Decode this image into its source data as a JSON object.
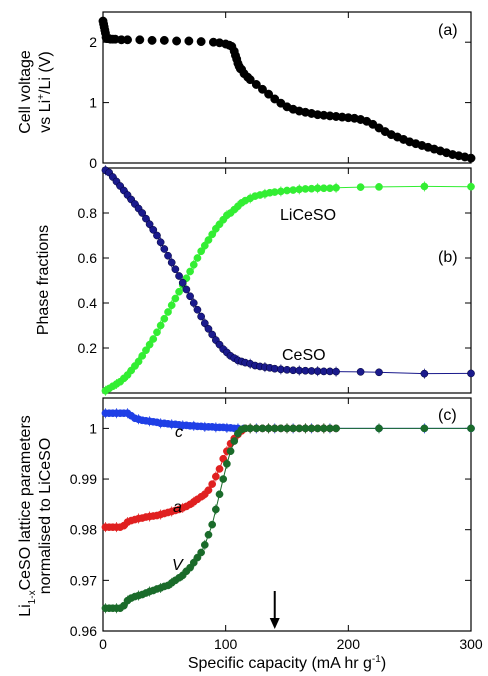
{
  "chart_data": [
    {
      "type": "scatter",
      "panel_label": "(a)",
      "ylabel_line1": "Cell voltage",
      "ylabel_line2_prefix": "vs Li",
      "ylabel_line2_sup": "+",
      "ylabel_line2_suffix": "/Li (V)",
      "xlim": [
        0,
        300
      ],
      "ylim": [
        0,
        2.5
      ],
      "yticks": [
        0,
        1,
        2
      ],
      "ytick_labels": [
        "0",
        "1",
        "2"
      ],
      "marker_color": "#000000",
      "series": [
        {
          "x": [
            0,
            0.5,
            1,
            1.5,
            2,
            2.5,
            3,
            4,
            5,
            6,
            8,
            10,
            15,
            20,
            30,
            40,
            50,
            60,
            70,
            80,
            90,
            95,
            100,
            103,
            105,
            107,
            108,
            109,
            110,
            111,
            112,
            113,
            115,
            118,
            120,
            125,
            130,
            135,
            140,
            145,
            150,
            155,
            160,
            165,
            170,
            175,
            180,
            185,
            190,
            195,
            200,
            205,
            210,
            215,
            220,
            225,
            230,
            235,
            240,
            245,
            250,
            255,
            260,
            265,
            270,
            275,
            280,
            285,
            290,
            295,
            300
          ],
          "y": [
            2.35,
            2.3,
            2.25,
            2.2,
            2.15,
            2.08,
            2.06,
            2.06,
            2.06,
            2.05,
            2.05,
            2.05,
            2.04,
            2.04,
            2.04,
            2.03,
            2.03,
            2.02,
            2.02,
            2.01,
            2.0,
            1.99,
            1.97,
            1.95,
            1.93,
            1.85,
            1.78,
            1.72,
            1.65,
            1.6,
            1.56,
            1.55,
            1.48,
            1.42,
            1.38,
            1.3,
            1.22,
            1.14,
            1.06,
            0.99,
            0.93,
            0.89,
            0.86,
            0.84,
            0.82,
            0.8,
            0.79,
            0.78,
            0.77,
            0.76,
            0.75,
            0.74,
            0.72,
            0.69,
            0.64,
            0.58,
            0.52,
            0.47,
            0.43,
            0.39,
            0.35,
            0.32,
            0.29,
            0.26,
            0.23,
            0.2,
            0.17,
            0.14,
            0.12,
            0.1,
            0.08
          ]
        }
      ]
    },
    {
      "type": "scatter",
      "panel_label": "(b)",
      "ylabel": "Phase fractions",
      "xlim": [
        0,
        300
      ],
      "ylim": [
        0,
        1
      ],
      "yticks": [
        0.2,
        0.4,
        0.6,
        0.8
      ],
      "ytick_labels": [
        "0.2",
        "0.4",
        "0.6",
        "0.8"
      ],
      "series": [
        {
          "name": "LiCeSO",
          "color": "#33ee33",
          "x": [
            2,
            5,
            8,
            11,
            14,
            17,
            20,
            23,
            26,
            29,
            32,
            35,
            38,
            41,
            44,
            47,
            50,
            53,
            56,
            59,
            62,
            65,
            68,
            71,
            74,
            77,
            80,
            83,
            86,
            89,
            92,
            95,
            98,
            101,
            104,
            107,
            110,
            113,
            116,
            120,
            124,
            128,
            132,
            136,
            140,
            145,
            150,
            155,
            160,
            165,
            170,
            175,
            180,
            185,
            190,
            210,
            225,
            262,
            300
          ],
          "y": [
            0.01,
            0.02,
            0.03,
            0.04,
            0.05,
            0.065,
            0.08,
            0.1,
            0.12,
            0.14,
            0.165,
            0.19,
            0.215,
            0.24,
            0.27,
            0.3,
            0.33,
            0.36,
            0.39,
            0.42,
            0.45,
            0.48,
            0.51,
            0.54,
            0.57,
            0.6,
            0.63,
            0.655,
            0.68,
            0.705,
            0.73,
            0.75,
            0.77,
            0.79,
            0.8,
            0.815,
            0.83,
            0.845,
            0.855,
            0.865,
            0.875,
            0.88,
            0.885,
            0.89,
            0.893,
            0.896,
            0.9,
            0.902,
            0.905,
            0.907,
            0.908,
            0.91,
            0.91,
            0.91,
            0.912,
            0.915,
            0.916,
            0.918,
            0.917
          ]
        },
        {
          "name": "CeSO",
          "color": "#1a1a8c",
          "x": [
            2,
            5,
            8,
            11,
            14,
            17,
            20,
            23,
            26,
            29,
            32,
            35,
            38,
            41,
            44,
            47,
            50,
            53,
            56,
            59,
            62,
            65,
            68,
            71,
            74,
            77,
            80,
            83,
            86,
            89,
            92,
            95,
            98,
            101,
            104,
            107,
            110,
            113,
            116,
            120,
            124,
            128,
            132,
            136,
            140,
            145,
            150,
            155,
            160,
            165,
            170,
            175,
            180,
            185,
            190,
            210,
            225,
            262,
            300
          ],
          "y": [
            0.99,
            0.98,
            0.96,
            0.94,
            0.92,
            0.9,
            0.88,
            0.86,
            0.84,
            0.82,
            0.8,
            0.775,
            0.75,
            0.725,
            0.7,
            0.67,
            0.64,
            0.61,
            0.58,
            0.55,
            0.52,
            0.49,
            0.46,
            0.43,
            0.4,
            0.37,
            0.34,
            0.31,
            0.285,
            0.26,
            0.235,
            0.215,
            0.195,
            0.18,
            0.165,
            0.155,
            0.145,
            0.14,
            0.135,
            0.13,
            0.122,
            0.118,
            0.115,
            0.112,
            0.108,
            0.105,
            0.103,
            0.101,
            0.1,
            0.099,
            0.098,
            0.097,
            0.096,
            0.096,
            0.095,
            0.094,
            0.092,
            0.086,
            0.087
          ]
        }
      ]
    },
    {
      "type": "scatter",
      "panel_label": "(c)",
      "ylabel_line1_prefix": "Li",
      "ylabel_line1_sub": "1-x",
      "ylabel_line1_suffix": "CeSO lattice parameters",
      "ylabel_line2": "normalised to LiCeSO",
      "xlabel_prefix": "Specific capacity (mA hr g",
      "xlabel_sup": "-1",
      "xlabel_suffix": ")",
      "xlim": [
        0,
        300
      ],
      "ylim": [
        0.96,
        1.006
      ],
      "yticks": [
        0.96,
        0.97,
        0.98,
        0.99,
        1
      ],
      "ytick_labels": [
        "0.96",
        "0.97",
        "0.98",
        "0.99",
        "1"
      ],
      "xticks": [
        0,
        100,
        200,
        300
      ],
      "xtick_labels": [
        "0",
        "100",
        "200",
        "300"
      ],
      "arrow_x": 140,
      "series": [
        {
          "name": "c",
          "color": "#1f3fe6",
          "x": [
            2,
            5,
            8,
            11,
            14,
            17,
            20,
            23,
            26,
            29,
            32,
            35,
            38,
            41,
            44,
            47,
            50,
            53,
            56,
            59,
            62,
            65,
            68,
            71,
            74,
            77,
            80,
            83,
            86,
            89,
            92,
            95,
            98,
            101,
            104,
            107,
            110,
            115,
            120,
            125,
            130,
            135,
            140,
            145,
            150,
            155,
            160,
            165,
            170,
            175,
            180,
            185,
            190,
            225,
            262,
            300
          ],
          "y": [
            1.003,
            1.003,
            1.003,
            1.003,
            1.003,
            1.003,
            1.003,
            1.0025,
            1.002,
            1.0018,
            1.0016,
            1.0015,
            1.0014,
            1.0013,
            1.0012,
            1.001,
            1.001,
            1.0009,
            1.0008,
            1.0008,
            1.0007,
            1.0006,
            1.0006,
            1.0005,
            1.0005,
            1.0004,
            1.0004,
            1.0003,
            1.0003,
            1.0003,
            1.0002,
            1.0002,
            1.0002,
            1.0001,
            1.0001,
            1.0,
            1.0,
            1.0,
            1.0,
            1.0,
            1.0,
            1.0,
            1.0,
            1.0,
            1.0,
            1.0,
            1.0,
            1.0,
            1.0,
            1.0,
            1.0,
            1.0,
            1.0,
            1.0,
            1.0,
            1.0
          ]
        },
        {
          "name": "a",
          "color": "#e02020",
          "x": [
            2,
            5,
            8,
            11,
            14,
            17,
            20,
            23,
            26,
            29,
            32,
            35,
            38,
            41,
            44,
            47,
            50,
            53,
            56,
            59,
            62,
            65,
            68,
            71,
            74,
            77,
            80,
            83,
            86,
            89,
            92,
            95,
            98,
            101,
            104,
            107,
            110,
            113,
            116,
            120,
            125,
            130,
            135,
            140,
            145,
            150,
            155,
            160,
            165,
            170,
            175,
            180,
            185,
            190
          ],
          "y": [
            0.9805,
            0.9805,
            0.9805,
            0.9805,
            0.9805,
            0.9808,
            0.9815,
            0.9818,
            0.982,
            0.9822,
            0.9823,
            0.9825,
            0.9826,
            0.9827,
            0.9828,
            0.983,
            0.9832,
            0.9834,
            0.9836,
            0.9838,
            0.984,
            0.9843,
            0.9846,
            0.985,
            0.9855,
            0.986,
            0.9865,
            0.987,
            0.9878,
            0.989,
            0.9905,
            0.992,
            0.994,
            0.9955,
            0.997,
            0.998,
            0.9988,
            0.9995,
            1.0,
            1.0,
            1.0,
            1.0,
            1.0,
            1.0,
            1.0,
            1.0,
            1.0,
            1.0,
            1.0,
            1.0,
            1.0,
            1.0,
            1.0,
            1.0
          ]
        },
        {
          "name": "V",
          "color": "#1a6b2a",
          "x": [
            2,
            5,
            8,
            11,
            14,
            17,
            20,
            23,
            26,
            29,
            32,
            35,
            38,
            41,
            44,
            47,
            50,
            53,
            56,
            59,
            62,
            65,
            68,
            71,
            74,
            77,
            80,
            83,
            86,
            89,
            92,
            95,
            98,
            101,
            104,
            107,
            110,
            113,
            116,
            120,
            125,
            130,
            135,
            140,
            145,
            150,
            155,
            160,
            165,
            170,
            175,
            180,
            185,
            190,
            225,
            262,
            300
          ],
          "y": [
            0.9645,
            0.9645,
            0.9645,
            0.9645,
            0.9645,
            0.965,
            0.966,
            0.9665,
            0.9668,
            0.967,
            0.9672,
            0.9675,
            0.9678,
            0.968,
            0.9683,
            0.9685,
            0.9688,
            0.969,
            0.9695,
            0.97,
            0.9705,
            0.971,
            0.9718,
            0.9725,
            0.9735,
            0.9745,
            0.9755,
            0.977,
            0.979,
            0.981,
            0.984,
            0.987,
            0.99,
            0.993,
            0.9955,
            0.9975,
            0.999,
            0.9998,
            1.0,
            1.0,
            1.0,
            1.0,
            1.0,
            1.0,
            1.0,
            1.0,
            1.0,
            1.0,
            1.0,
            1.0,
            1.0,
            1.0,
            1.0,
            1.0,
            1.0,
            1.0,
            1.0
          ]
        }
      ]
    }
  ]
}
